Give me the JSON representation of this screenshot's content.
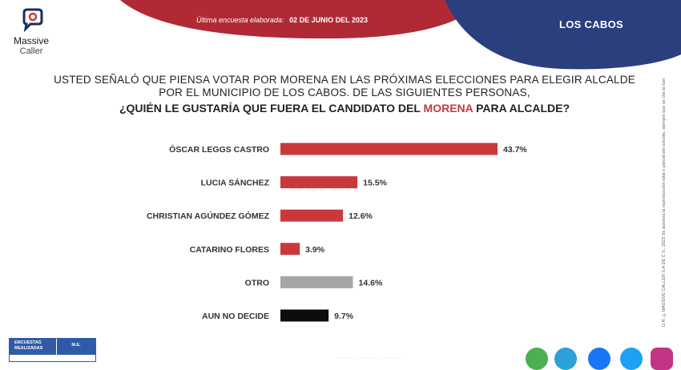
{
  "brand": {
    "line1": "Massive",
    "line2": "Caller"
  },
  "header": {
    "survey_label": "Última encuesta elaborada:",
    "survey_date": "02 DE JUNIO DEL 2023",
    "region": "LOS CABOS"
  },
  "question": {
    "line1": "USTED SEÑALÓ QUE PIENSA VOTAR POR MORENA EN LAS PRÓXIMAS ELECCIONES PARA ELEGIR ALCALDE",
    "line2": "POR EL MUNICIPIO DE LOS CABOS.  DE LAS SIGUIENTES PERSONAS,",
    "line3_pre": "¿QUIÉN LE GUSTARÍA QUE FUERA EL CANDIDATO DEL ",
    "line3_highlight": "MORENA",
    "line3_post": " PARA ALCALDE?"
  },
  "chart_data": {
    "type": "bar",
    "orientation": "horizontal",
    "categories": [
      "ÓSCAR LEGGS CASTRO",
      "LUCIA SÁNCHEZ",
      "CHRISTIAN AGÚNDEZ GÓMEZ",
      "CATARINO FLORES",
      "OTRO",
      "AUN NO DECIDE"
    ],
    "values": [
      43.7,
      15.5,
      12.6,
      3.9,
      14.6,
      9.7
    ],
    "labels": [
      "43.7%",
      "15.5%",
      "12.6%",
      "3.9%",
      "14.6%",
      "9.7%"
    ],
    "colors": [
      "#c9393c",
      "#c9393c",
      "#c9393c",
      "#c9393c",
      "#a6a6a6",
      "#0d0d0d"
    ],
    "xlim": [
      0,
      43.7
    ],
    "grid": false
  },
  "side_note": "D.R. ©MASSIVE CALLER S.A DE C.V., 2023  Se autoriza la reproducción total o parcial del estudio, siempre que se cite la fuente y no se altere el contenido.",
  "table_stub": {
    "col1": "ENCUESTAS REALIZADAS",
    "col2": "M.E."
  },
  "watermark": "DEPEN",
  "social_icons": [
    "whatsapp-icon",
    "telegram-icon",
    "facebook-icon",
    "twitter-icon",
    "instagram-icon"
  ],
  "colors": {
    "red": "#c9393c",
    "navy": "#2b3f7e",
    "gray": "#a6a6a6",
    "black": "#0d0d0d"
  }
}
